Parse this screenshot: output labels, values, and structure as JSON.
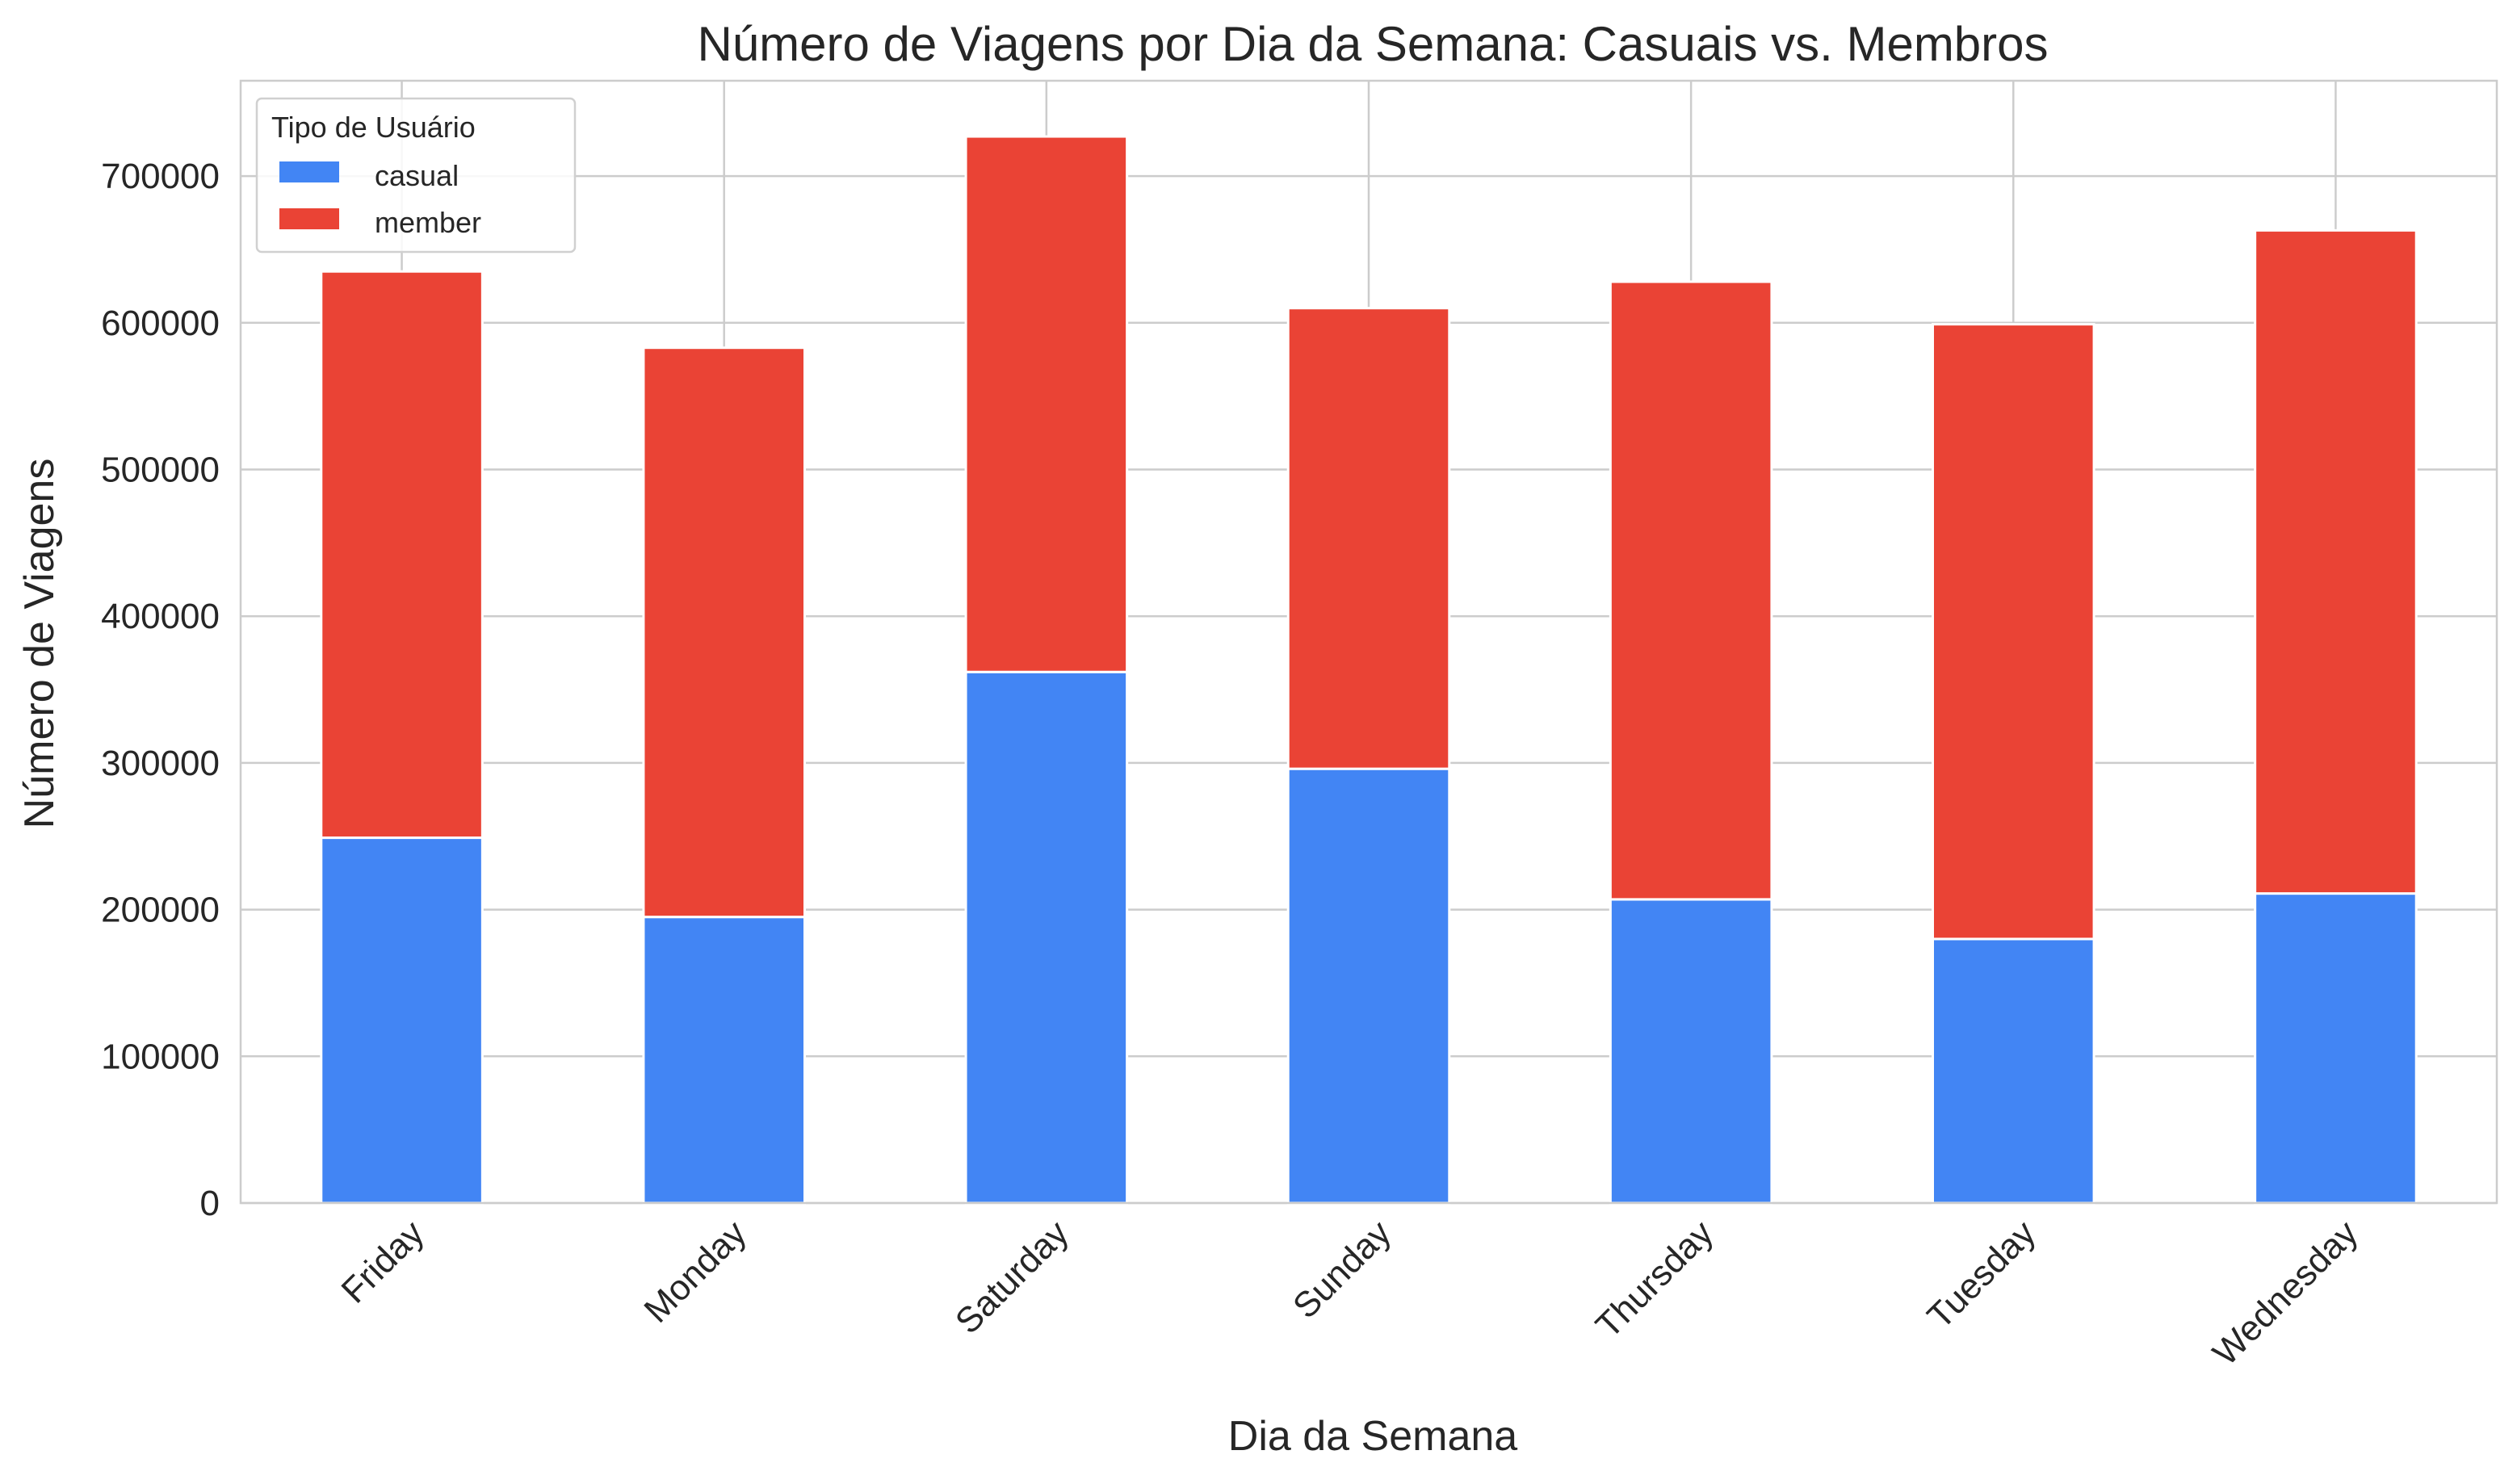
{
  "chart_data": {
    "type": "bar",
    "stacked": true,
    "title": "Número de Viagens por Dia da Semana: Casuais vs. Membros",
    "xlabel": "Dia da Semana",
    "ylabel": "Número de Viagens",
    "categories": [
      "Friday",
      "Monday",
      "Saturday",
      "Sunday",
      "Thursday",
      "Tuesday",
      "Wednesday"
    ],
    "series": [
      {
        "name": "casual",
        "color": "#4285f4",
        "values": [
          249000,
          195000,
          362000,
          296000,
          207000,
          180000,
          211000
        ]
      },
      {
        "name": "member",
        "color": "#ea4335",
        "values": [
          386000,
          388000,
          365000,
          314000,
          421000,
          419000,
          452000
        ]
      }
    ],
    "ylim": [
      0,
      765000
    ],
    "yticks": [
      "0",
      "100000",
      "200000",
      "300000",
      "400000",
      "500000",
      "600000",
      "700000"
    ],
    "ytick_values": [
      0,
      100000,
      200000,
      300000,
      400000,
      500000,
      600000,
      700000
    ],
    "grid": true,
    "legend": {
      "title": "Tipo de Usuário",
      "placement": "top-left"
    },
    "xtick_rotation": 45
  }
}
